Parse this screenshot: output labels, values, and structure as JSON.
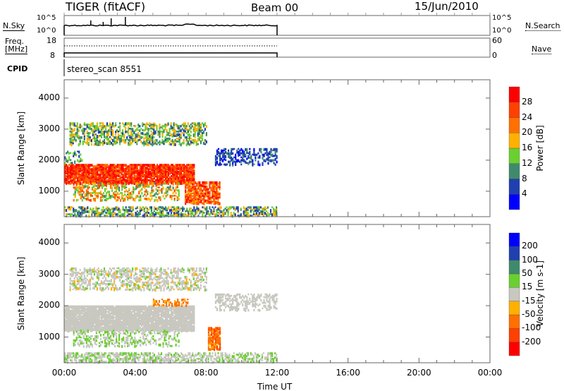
{
  "header": {
    "title": "TIGER (fitACF)",
    "beam": "Beam 00",
    "date": "15/Jun/2010"
  },
  "nsky_panel": {
    "label": "N.Sky",
    "right_label": "N.Search",
    "left_ticks": [
      "10^5",
      "10^0"
    ],
    "right_ticks": [
      "10^5",
      "10^0"
    ]
  },
  "freq_panel": {
    "label_line1": "Freq.",
    "label_line2": "[MHz]",
    "right_label": "Nave",
    "left_ticks": [
      "18",
      "8"
    ],
    "right_ticks": [
      "60",
      "0"
    ]
  },
  "cpid": {
    "label": "CPID",
    "value": "stereo_scan 8551"
  },
  "colors": {
    "power": [
      "#0000ff",
      "#2040b0",
      "#3f8a6c",
      "#6ad030",
      "#ffb000",
      "#ff7000",
      "#ff4000",
      "#ff0000"
    ],
    "velocity": [
      "#ff0000",
      "#ff4000",
      "#ff7000",
      "#ffb000",
      "#c8c8c0",
      "#6ad030",
      "#3f8a6c",
      "#2040b0",
      "#0000ff"
    ]
  },
  "chart_data": [
    {
      "type": "heatmap",
      "title": "Power",
      "xlabel": "Time UT",
      "ylabel": "Slant Range [km]",
      "xlim": [
        0,
        24
      ],
      "ylim": [
        180,
        4590
      ],
      "xticks": [
        "00:00",
        "04:00",
        "08:00",
        "12:00",
        "16:00",
        "20:00",
        "00:00"
      ],
      "yticks": [
        "1000",
        "2000",
        "3000",
        "4000"
      ],
      "colorbar": {
        "label": "Power [dB]",
        "ticks": [
          "28",
          "24",
          "20",
          "16",
          "12",
          "8",
          "4"
        ]
      },
      "regions": [
        {
          "t": [
            0,
            7.3
          ],
          "r": [
            1250,
            1850
          ],
          "value": [
            22,
            32
          ],
          "density": 0.9
        },
        {
          "t": [
            0.3,
            8.0
          ],
          "r": [
            2500,
            3200
          ],
          "value": [
            6,
            20
          ],
          "density": 0.45
        },
        {
          "t": [
            8.5,
            12
          ],
          "r": [
            1850,
            2350
          ],
          "value": [
            2,
            10
          ],
          "density": 0.4
        },
        {
          "t": [
            0,
            12
          ],
          "r": [
            200,
            500
          ],
          "value": [
            4,
            20
          ],
          "density": 0.5
        },
        {
          "t": [
            6.8,
            8.8
          ],
          "r": [
            600,
            1300
          ],
          "value": [
            18,
            30
          ],
          "density": 0.7
        },
        {
          "t": [
            0.5,
            6.5
          ],
          "r": [
            700,
            1250
          ],
          "value": [
            10,
            26
          ],
          "density": 0.35
        },
        {
          "t": [
            0,
            1
          ],
          "r": [
            1900,
            2300
          ],
          "value": [
            4,
            16
          ],
          "density": 0.3
        }
      ]
    },
    {
      "type": "heatmap",
      "title": "Velocity",
      "xlabel": "Time UT",
      "ylabel": "Slant Range [km]",
      "xlim": [
        0,
        24
      ],
      "ylim": [
        180,
        4590
      ],
      "colorbar": {
        "label": "Velocity [m s-1]",
        "ticks": [
          "200",
          "100",
          "50",
          "15",
          "-15",
          "-50",
          "-100",
          "-200"
        ]
      },
      "regions": [
        {
          "t": [
            0,
            7.3
          ],
          "r": [
            1200,
            2000
          ],
          "value": [
            -10,
            10
          ],
          "density": 0.9
        },
        {
          "t": [
            0.3,
            8.0
          ],
          "r": [
            2500,
            3200
          ],
          "value": [
            -20,
            20
          ],
          "density": 0.45
        },
        {
          "t": [
            8.5,
            12
          ],
          "r": [
            1850,
            2350
          ],
          "value": [
            -10,
            10
          ],
          "density": 0.4
        },
        {
          "t": [
            0,
            12
          ],
          "r": [
            200,
            500
          ],
          "value": [
            -12,
            30
          ],
          "density": 0.5
        },
        {
          "t": [
            8.1,
            8.8
          ],
          "r": [
            600,
            1300
          ],
          "value": [
            -120,
            -40
          ],
          "density": 0.8
        },
        {
          "t": [
            5,
            7
          ],
          "r": [
            2000,
            2200
          ],
          "value": [
            -90,
            -40
          ],
          "density": 0.5
        },
        {
          "t": [
            0.5,
            6.5
          ],
          "r": [
            700,
            1200
          ],
          "value": [
            -10,
            40
          ],
          "density": 0.3
        }
      ]
    }
  ]
}
